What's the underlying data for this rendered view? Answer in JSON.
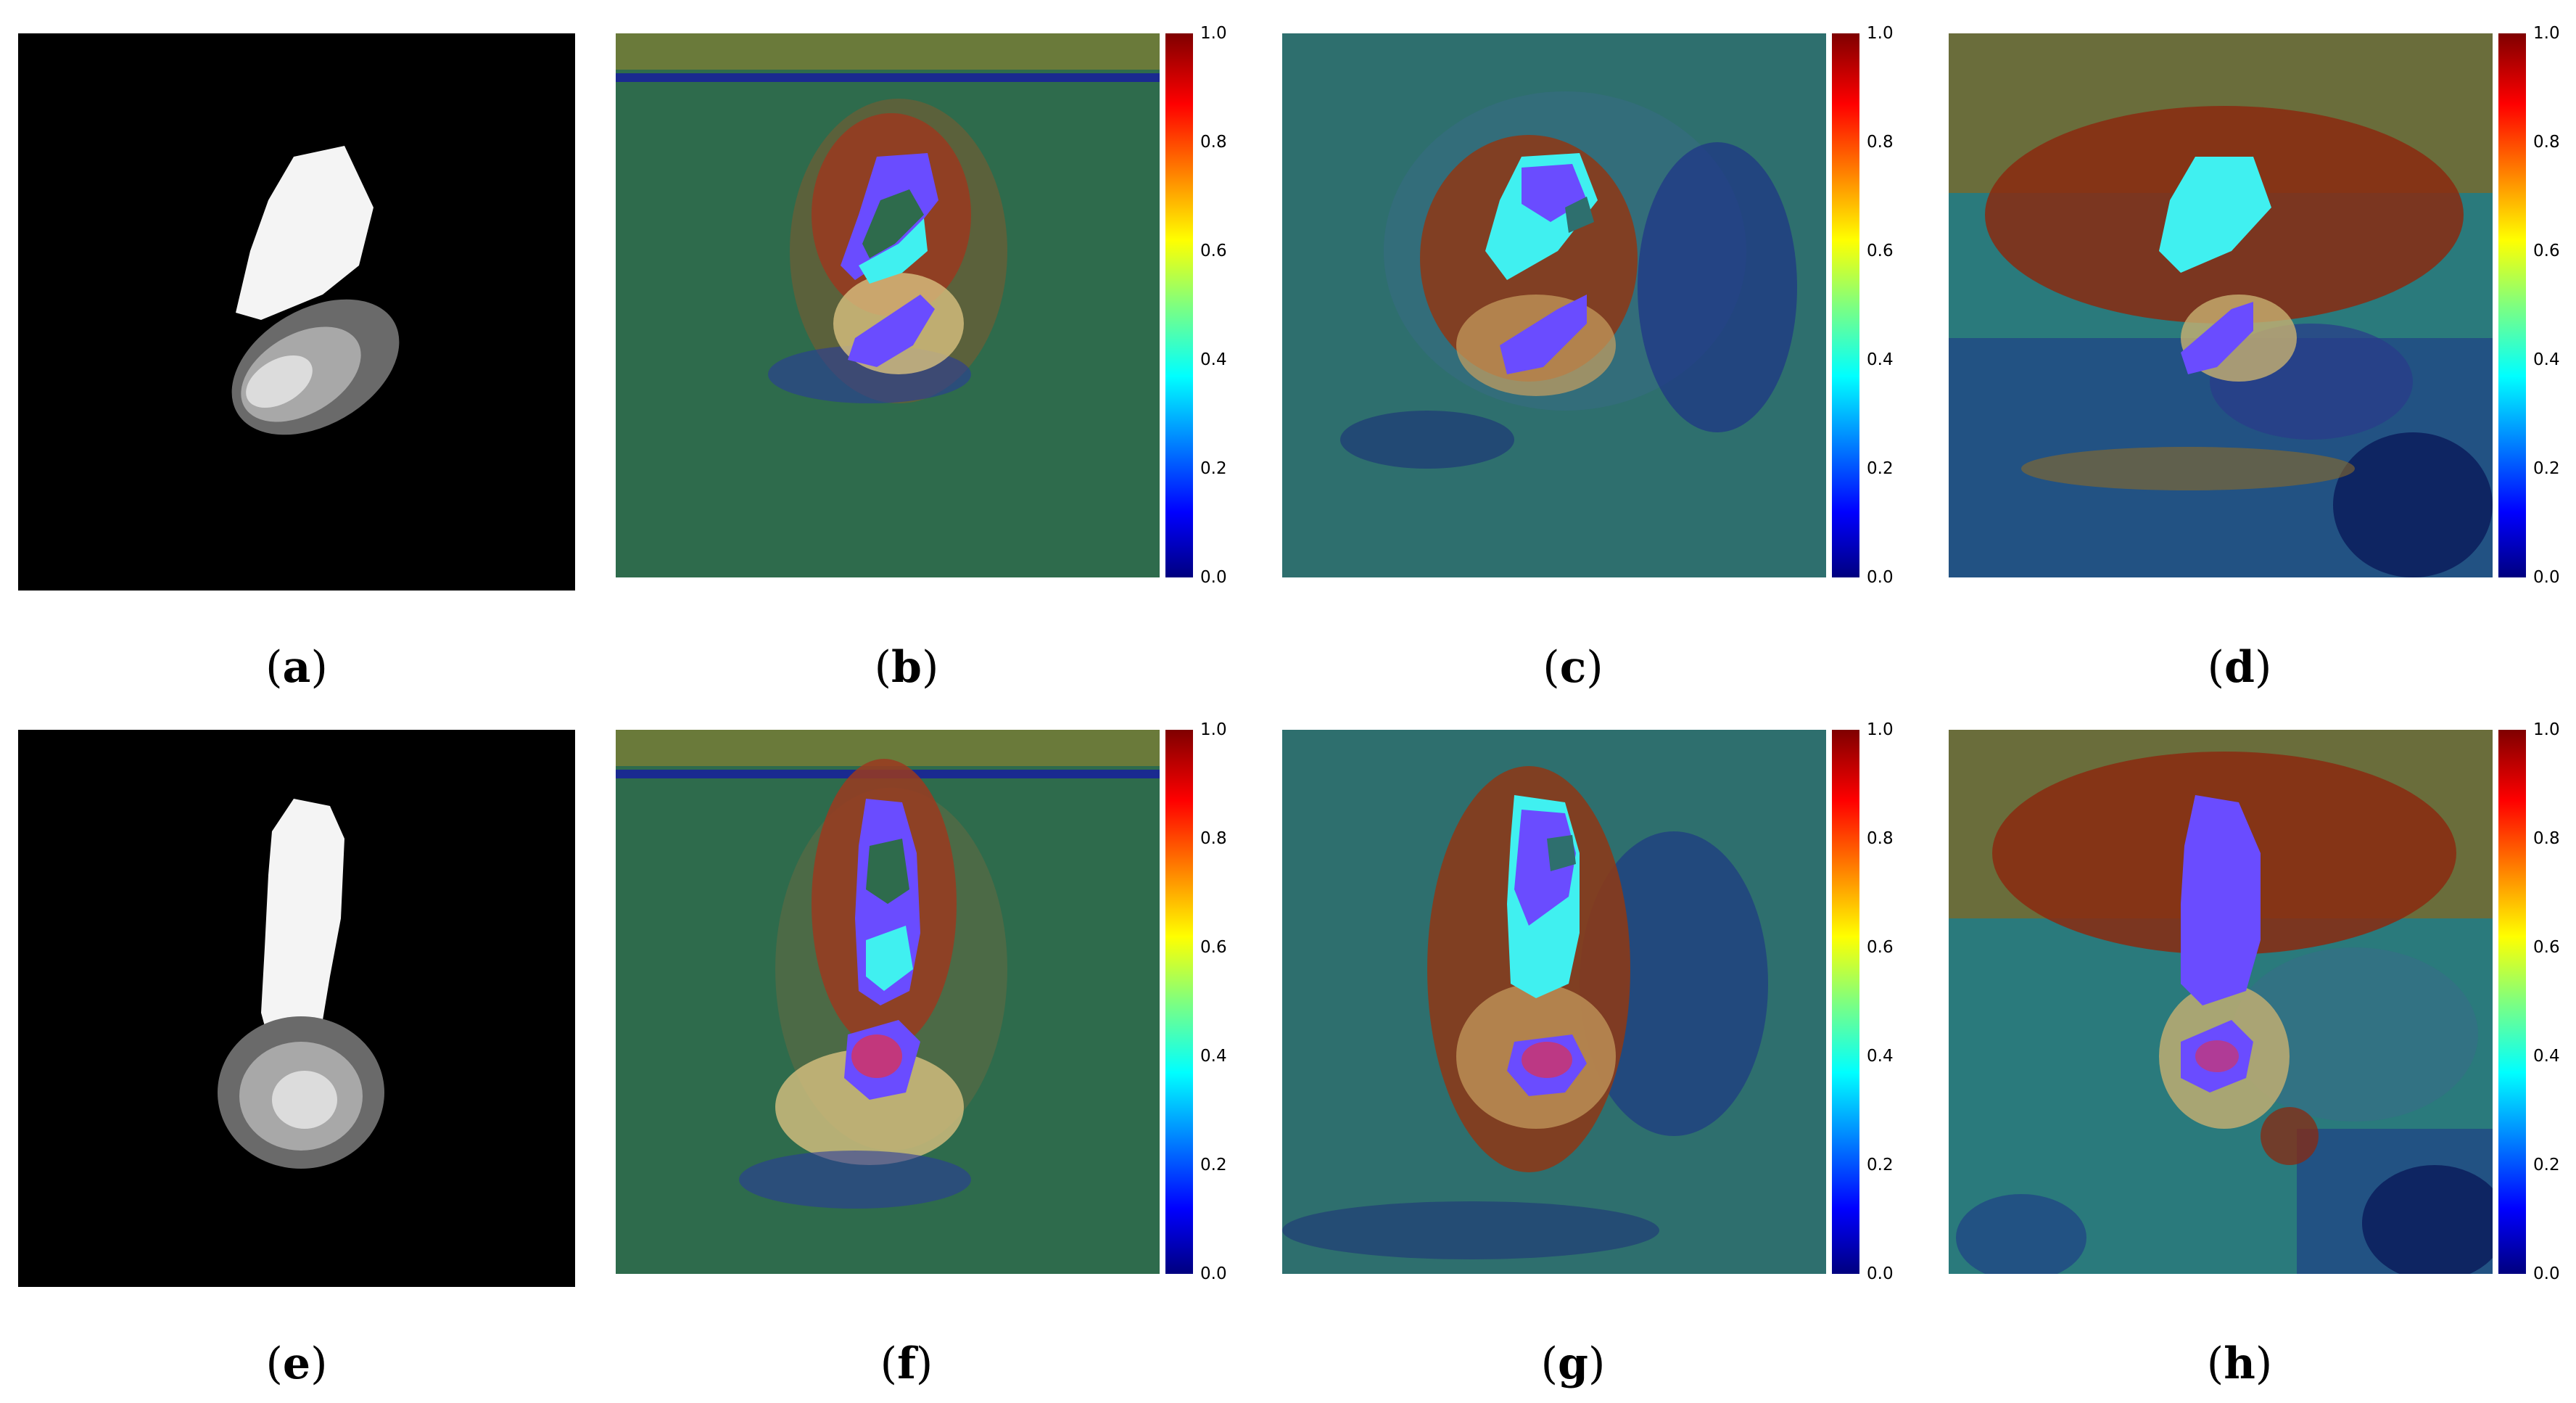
{
  "panels": [
    {
      "id": "a",
      "kind": "grayscale"
    },
    {
      "id": "b",
      "kind": "heatmap"
    },
    {
      "id": "c",
      "kind": "heatmap"
    },
    {
      "id": "d",
      "kind": "heatmap"
    },
    {
      "id": "e",
      "kind": "grayscale"
    },
    {
      "id": "f",
      "kind": "heatmap"
    },
    {
      "id": "g",
      "kind": "heatmap"
    },
    {
      "id": "h",
      "kind": "heatmap"
    }
  ],
  "captions": {
    "a": {
      "open": "(",
      "letter": "a",
      "close": ")"
    },
    "b": {
      "open": "(",
      "letter": "b",
      "close": ")"
    },
    "c": {
      "open": "(",
      "letter": "c",
      "close": ")"
    },
    "d": {
      "open": "(",
      "letter": "d",
      "close": ")"
    },
    "e": {
      "open": "(",
      "letter": "e",
      "close": ")"
    },
    "f": {
      "open": "(",
      "letter": "f",
      "close": ")"
    },
    "g": {
      "open": "(",
      "letter": "g",
      "close": ")"
    },
    "h": {
      "open": "(",
      "letter": "h",
      "close": ")"
    }
  },
  "colorbar": {
    "ticks": [
      "1.0",
      "0.8",
      "0.6",
      "0.4",
      "0.2",
      "0.0"
    ],
    "colormap": "jet"
  },
  "colors": {
    "background": "#ffffff",
    "heatmap_base_b": "#2e6b4c",
    "heatmap_base_c": "#2e6f6e",
    "heatmap_base_d": "#2a7a7c",
    "lesion_fill": "#6a4cff",
    "cyan_fill": "#40f0f0"
  }
}
